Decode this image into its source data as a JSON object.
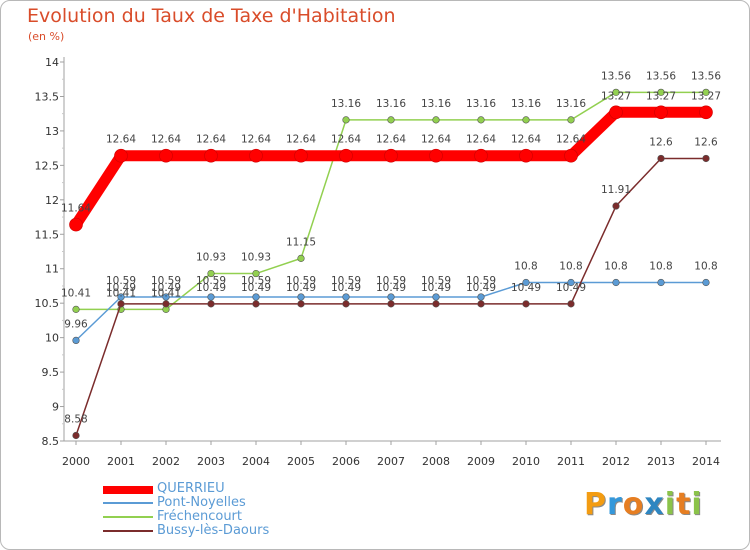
{
  "header": {
    "title": "Evolution du Taux de Taxe d'Habitation",
    "subtitle": "(en %)"
  },
  "chart_data": {
    "type": "line",
    "title": "Evolution du Taux de Taxe d'Habitation",
    "ylabel": "(en %)",
    "xlabel": "",
    "categories": [
      "2000",
      "2001",
      "2002",
      "2003",
      "2004",
      "2005",
      "2006",
      "2007",
      "2008",
      "2009",
      "2010",
      "2011",
      "2012",
      "2013",
      "2014"
    ],
    "ylim": [
      8.5,
      14
    ],
    "yticks": [
      "8.5",
      "9",
      "9.5",
      "10",
      "10.5",
      "11",
      "11.5",
      "12",
      "12.5",
      "13",
      "13.5",
      "14"
    ],
    "grid": false,
    "legend_position": "bottom-left",
    "series": [
      {
        "name": "QUERRIEU",
        "color": "#ff0000",
        "labels": [
          "11.64",
          "12.64",
          "12.64",
          "12.64",
          "12.64",
          "12.64",
          "12.64",
          "12.64",
          "12.64",
          "12.64",
          "12.64",
          "12.64",
          "13.27",
          "13.27",
          "13.27"
        ],
        "values": [
          11.64,
          12.64,
          12.64,
          12.64,
          12.64,
          12.64,
          12.64,
          12.64,
          12.64,
          12.64,
          12.64,
          12.64,
          13.27,
          13.27,
          13.27
        ]
      },
      {
        "name": "Pont-Noyelles",
        "color": "#5b9bd5",
        "labels": [
          "9.96",
          "10.59",
          "10.59",
          "10.59",
          "10.59",
          "10.59",
          "10.59",
          "10.59",
          "10.59",
          "10.59",
          "10.8",
          "10.8",
          "10.8",
          "10.8",
          "10.8"
        ],
        "values": [
          9.96,
          10.59,
          10.59,
          10.59,
          10.59,
          10.59,
          10.59,
          10.59,
          10.59,
          10.59,
          10.8,
          10.8,
          10.8,
          10.8,
          10.8
        ]
      },
      {
        "name": "Fréchencourt",
        "color": "#92d050",
        "labels": [
          "10.41",
          "10.41",
          "10.41",
          "10.93",
          "10.93",
          "11.15",
          "13.16",
          "13.16",
          "13.16",
          "13.16",
          "13.16",
          "13.16",
          "13.56",
          "13.56",
          "13.56"
        ],
        "values": [
          10.41,
          10.41,
          10.41,
          10.93,
          10.93,
          11.15,
          13.16,
          13.16,
          13.16,
          13.16,
          13.16,
          13.16,
          13.56,
          13.56,
          13.56
        ]
      },
      {
        "name": "Bussy-lès-Daours",
        "color": "#7b2c2c",
        "labels": [
          "8.58",
          "10.49",
          "10.49",
          "10.49",
          "10.49",
          "10.49",
          "10.49",
          "10.49",
          "10.49",
          "10.49",
          "10.49",
          "10.49",
          "11.91",
          "12.6",
          "12.6"
        ],
        "values": [
          8.58,
          10.49,
          10.49,
          10.49,
          10.49,
          10.49,
          10.49,
          10.49,
          10.49,
          10.49,
          10.49,
          10.49,
          11.91,
          12.6,
          12.6
        ]
      }
    ]
  },
  "legend": {
    "items": [
      {
        "label": "QUERRIEU",
        "color": "#ff0000"
      },
      {
        "label": "Pont-Noyelles",
        "color": "#5b9bd5"
      },
      {
        "label": "Fréchencourt",
        "color": "#92d050"
      },
      {
        "label": "Bussy-lès-Daours",
        "color": "#7b2c2c"
      }
    ]
  },
  "logo": {
    "text": "Proxiti",
    "letters": [
      "P",
      "r",
      "o",
      "x",
      "i",
      "t",
      "i"
    ],
    "colors": [
      "#f39c12",
      "#3498db",
      "#e67e22",
      "#2e86c1",
      "#8bc34a",
      "#e67e22",
      "#8bc34a"
    ]
  }
}
